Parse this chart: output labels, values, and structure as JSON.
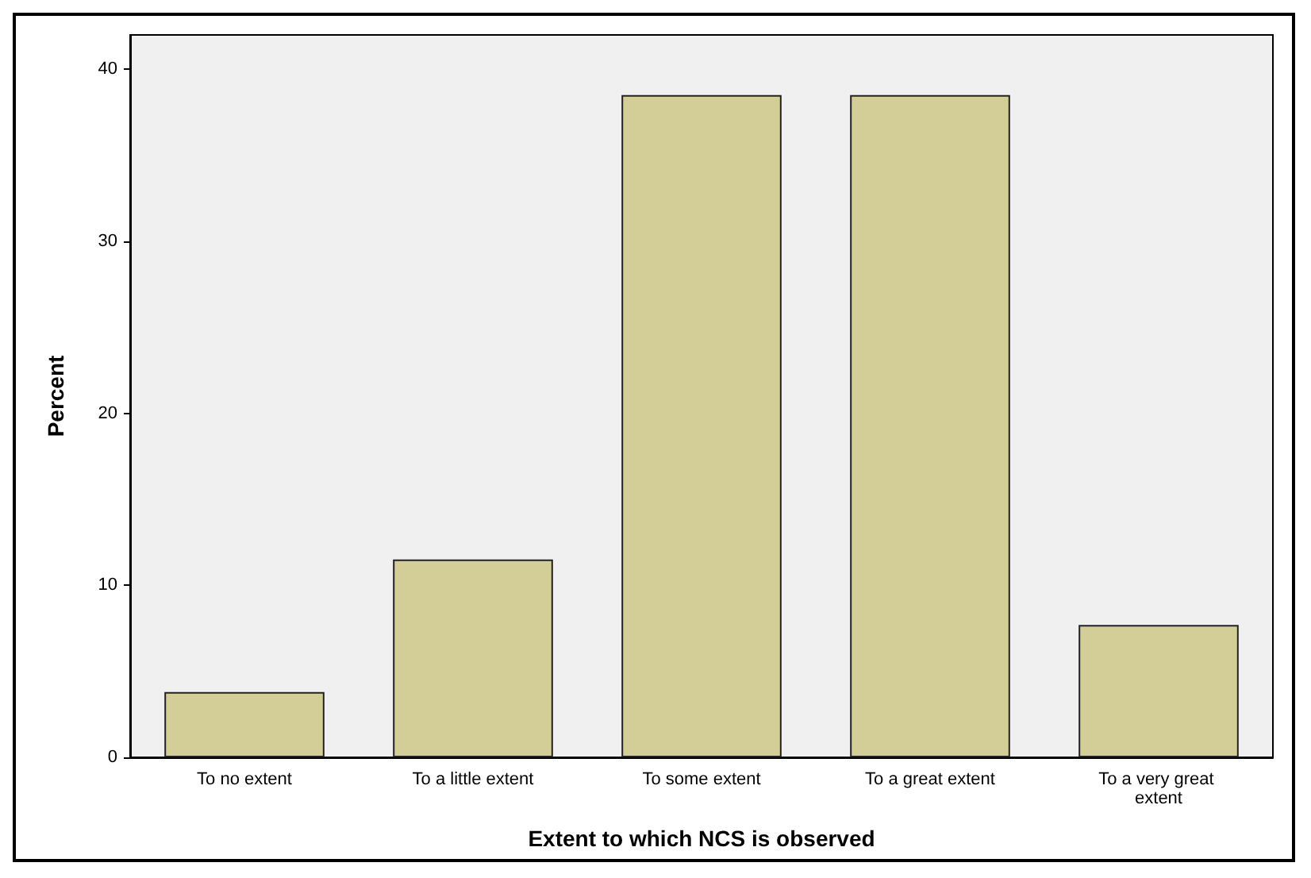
{
  "chart_data": {
    "type": "bar",
    "xlabel": "Extent to which NCS is observed",
    "ylabel": "Percent",
    "categories": [
      "To no extent",
      "To a little extent",
      "To some extent",
      "To a great extent",
      "To a very great extent"
    ],
    "values": [
      3.8,
      11.5,
      38.5,
      38.5,
      7.7
    ],
    "color": "#d3ce97",
    "ylim": [
      0,
      42
    ],
    "yticks": [
      0,
      10,
      20,
      30,
      40
    ],
    "grid": false
  }
}
